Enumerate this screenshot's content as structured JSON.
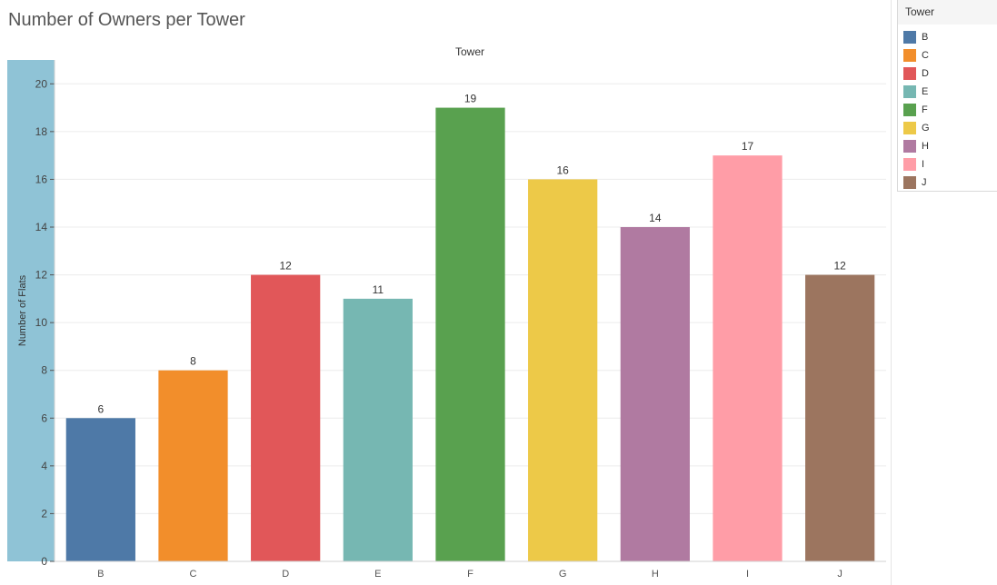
{
  "page": {
    "title": "Number of Owners per Tower"
  },
  "chart_data": {
    "type": "bar",
    "title": "Number of Owners per Tower",
    "column_header": "Tower",
    "xlabel": "",
    "ylabel": "Number of Flats",
    "categories": [
      "B",
      "C",
      "D",
      "E",
      "F",
      "G",
      "H",
      "I",
      "J"
    ],
    "values": [
      6,
      8,
      12,
      11,
      19,
      16,
      14,
      17,
      12
    ],
    "colors": [
      "#4e79a7",
      "#f28e2b",
      "#e15759",
      "#76b7b2",
      "#59a14f",
      "#edc948",
      "#b07aa1",
      "#ff9da7",
      "#9c755f"
    ],
    "ylim": [
      0,
      21
    ],
    "yticks": [
      0,
      2,
      4,
      6,
      8,
      10,
      12,
      14,
      16,
      18,
      20
    ],
    "grid": true,
    "legend_placement": "right",
    "data_labels": true
  },
  "legend": {
    "title": "Tower",
    "items": [
      "B",
      "C",
      "D",
      "E",
      "F",
      "G",
      "H",
      "I",
      "J"
    ]
  }
}
